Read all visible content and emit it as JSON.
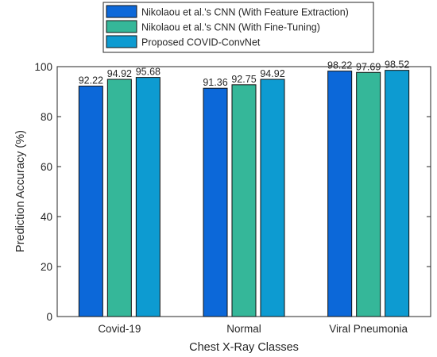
{
  "chart_data": {
    "type": "bar",
    "xlabel": "Chest X-Ray Classes",
    "ylabel": "Prediction Accuracy (%)",
    "ylim": [
      0,
      100
    ],
    "yticks": [
      0,
      20,
      40,
      60,
      80,
      100
    ],
    "grid": false,
    "legend_position": "top-center",
    "categories": [
      "Covid-19",
      "Normal",
      "Viral Pneumonia"
    ],
    "series": [
      {
        "name": "Nikolaou et al.'s CNN (With Feature Extraction)",
        "values": [
          92.22,
          91.36,
          98.22
        ],
        "labels": [
          "92.22",
          "91.36",
          "98.22"
        ],
        "color": "#0c68d9"
      },
      {
        "name": "Nikolaou et al.'s CNN (With Fine-Tuning)",
        "values": [
          94.92,
          92.75,
          97.69
        ],
        "labels": [
          "94.92",
          "92.75",
          "97.69"
        ],
        "color": "#35b799"
      },
      {
        "name": "Proposed COVID-ConvNet",
        "values": [
          95.68,
          94.92,
          98.52
        ],
        "labels": [
          "95.68",
          "94.92",
          "98.52"
        ],
        "color": "#0d9bd1"
      }
    ]
  }
}
